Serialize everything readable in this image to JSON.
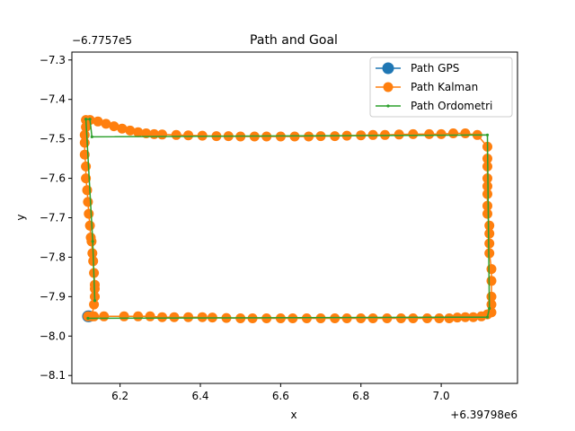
{
  "chart_data": {
    "type": "line",
    "title": "Path and Goal",
    "xlabel": "x",
    "ylabel": "y",
    "x_offset_text": "+6.39798e6",
    "y_offset_text": "−6.7757e5",
    "xlim": [
      6.08,
      7.19
    ],
    "ylim": [
      -8.12,
      -7.28
    ],
    "x_ticks": [
      6.2,
      6.4,
      6.6,
      6.8,
      7.0
    ],
    "x_tick_labels": [
      "6.2",
      "6.4",
      "6.6",
      "6.8",
      "7.0"
    ],
    "y_ticks": [
      -7.3,
      -7.4,
      -7.5,
      -7.6,
      -7.7,
      -7.8,
      -7.9,
      -8.0,
      -8.1
    ],
    "y_tick_labels": [
      "−7.3",
      "−7.4",
      "−7.5",
      "−7.6",
      "−7.7",
      "−7.8",
      "−7.9",
      "−8.0",
      "−8.1"
    ],
    "legend_position": "top-right",
    "grid": false,
    "series": [
      {
        "name": "Path GPS",
        "color": "#1f77b4",
        "marker_size": "large",
        "x": [
          6.12,
          6.123
        ],
        "y": [
          -7.95,
          -7.95
        ]
      },
      {
        "name": "Path Kalman",
        "color": "#ff7f0e",
        "marker_size": "medium",
        "x": [
          6.12,
          6.135,
          6.16,
          6.21,
          6.245,
          6.275,
          6.305,
          6.335,
          6.37,
          6.405,
          6.43,
          6.465,
          6.5,
          6.53,
          6.565,
          6.6,
          6.63,
          6.665,
          6.7,
          6.735,
          6.765,
          6.8,
          6.83,
          6.865,
          6.9,
          6.93,
          6.965,
          6.995,
          7.02,
          7.04,
          7.06,
          7.08,
          7.1,
          7.115,
          7.125,
          7.125,
          7.125,
          7.125,
          7.125,
          7.12,
          7.12,
          7.12,
          7.12,
          7.115,
          7.115,
          7.115,
          7.115,
          7.115,
          7.115,
          7.115,
          7.115,
          7.09,
          7.06,
          7.03,
          7.0,
          6.97,
          6.93,
          6.895,
          6.86,
          6.83,
          6.8,
          6.765,
          6.735,
          6.7,
          6.67,
          6.635,
          6.6,
          6.565,
          6.535,
          6.5,
          6.47,
          6.44,
          6.405,
          6.37,
          6.34,
          6.305,
          6.285,
          6.265,
          6.245,
          6.225,
          6.205,
          6.185,
          6.165,
          6.145,
          6.125,
          6.115,
          6.115,
          6.112,
          6.112,
          6.112,
          6.115,
          6.115,
          6.118,
          6.12,
          6.122,
          6.125,
          6.127,
          6.129,
          6.131,
          6.133,
          6.135,
          6.137,
          6.137,
          6.137,
          6.135,
          6.13
        ],
        "y": [
          -7.95,
          -7.95,
          -7.95,
          -7.95,
          -7.95,
          -7.95,
          -7.952,
          -7.952,
          -7.952,
          -7.952,
          -7.953,
          -7.954,
          -7.955,
          -7.955,
          -7.955,
          -7.955,
          -7.955,
          -7.955,
          -7.955,
          -7.955,
          -7.955,
          -7.955,
          -7.955,
          -7.955,
          -7.955,
          -7.955,
          -7.955,
          -7.955,
          -7.955,
          -7.953,
          -7.952,
          -7.952,
          -7.95,
          -7.945,
          -7.94,
          -7.92,
          -7.9,
          -7.86,
          -7.83,
          -7.79,
          -7.765,
          -7.74,
          -7.72,
          -7.69,
          -7.67,
          -7.64,
          -7.62,
          -7.6,
          -7.57,
          -7.55,
          -7.52,
          -7.49,
          -7.486,
          -7.486,
          -7.488,
          -7.488,
          -7.488,
          -7.489,
          -7.49,
          -7.49,
          -7.491,
          -7.492,
          -7.493,
          -7.493,
          -7.494,
          -7.494,
          -7.494,
          -7.494,
          -7.494,
          -7.494,
          -7.493,
          -7.493,
          -7.492,
          -7.491,
          -7.49,
          -7.489,
          -7.488,
          -7.486,
          -7.483,
          -7.479,
          -7.474,
          -7.468,
          -7.462,
          -7.456,
          -7.452,
          -7.452,
          -7.47,
          -7.49,
          -7.51,
          -7.54,
          -7.57,
          -7.6,
          -7.63,
          -7.66,
          -7.69,
          -7.72,
          -7.75,
          -7.76,
          -7.79,
          -7.81,
          -7.84,
          -7.87,
          -7.88,
          -7.9,
          -7.92,
          -7.95
        ]
      },
      {
        "name": "Path Ordometri",
        "color": "#2ca02c",
        "marker_size": "small",
        "x": [
          6.12,
          7.115,
          7.12,
          7.115,
          6.13,
          6.125,
          6.115,
          6.132,
          6.137
        ],
        "y": [
          -7.955,
          -7.952,
          -7.93,
          -7.49,
          -7.495,
          -7.45,
          -7.45,
          -7.76,
          -7.91
        ]
      }
    ]
  }
}
